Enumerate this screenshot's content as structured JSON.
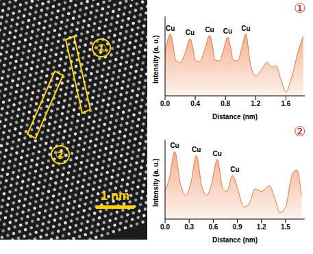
{
  "image": {
    "scale_bar": "1 nm",
    "regions": [
      "①",
      "②"
    ]
  },
  "chart_data": [
    {
      "type": "area",
      "title": "①",
      "x_label": "Distance (nm)",
      "y_label": "Intensity (a. u.)",
      "color": "#e8743b",
      "tick_labels": "x",
      "xlim": [
        0,
        1.85
      ],
      "xticks": [
        {
          "value": 0,
          "label": "0.0"
        },
        {
          "value": 0.4,
          "label": "0.4"
        },
        {
          "value": 0.8,
          "label": "0.8"
        },
        {
          "value": 1.2,
          "label": "1.2"
        },
        {
          "value": 1.6,
          "label": "1.6"
        }
      ],
      "ylim": [
        0,
        1
      ],
      "x": [
        0,
        0.04,
        0.07,
        0.1,
        0.14,
        0.2,
        0.27,
        0.33,
        0.37,
        0.4,
        0.46,
        0.53,
        0.59,
        0.63,
        0.66,
        0.72,
        0.78,
        0.83,
        0.87,
        0.9,
        0.96,
        1.02,
        1.07,
        1.1,
        1.13,
        1.2,
        1.27,
        1.35,
        1.42,
        1.47,
        1.53,
        1.6,
        1.68,
        1.76,
        1.83
      ],
      "values": [
        0.55,
        0.72,
        0.78,
        0.68,
        0.45,
        0.42,
        0.55,
        0.72,
        0.6,
        0.45,
        0.43,
        0.6,
        0.76,
        0.62,
        0.45,
        0.44,
        0.6,
        0.74,
        0.6,
        0.45,
        0.44,
        0.62,
        0.78,
        0.62,
        0.4,
        0.25,
        0.32,
        0.42,
        0.36,
        0.38,
        0.22,
        0.05,
        0.25,
        0.55,
        0.75
      ],
      "annotations": [
        {
          "text": "Cu",
          "x": 0.07,
          "y": 0.78
        },
        {
          "text": "Cu",
          "x": 0.33,
          "y": 0.72
        },
        {
          "text": "Cu",
          "x": 0.59,
          "y": 0.76
        },
        {
          "text": "Cu",
          "x": 0.83,
          "y": 0.74
        },
        {
          "text": "Cu",
          "x": 1.07,
          "y": 0.78
        }
      ]
    },
    {
      "type": "area",
      "title": "②",
      "x_label": "Distance (nm)",
      "y_label": "Intensity (a. u.)",
      "color": "#e8743b",
      "tick_labels": "x",
      "xlim": [
        0,
        1.74
      ],
      "xticks": [
        {
          "value": 0,
          "label": "0.0"
        },
        {
          "value": 0.3,
          "label": "0.3"
        },
        {
          "value": 0.6,
          "label": "0.6"
        },
        {
          "value": 0.9,
          "label": "0.9"
        },
        {
          "value": 1.2,
          "label": "1.2"
        },
        {
          "value": 1.5,
          "label": "1.5"
        }
      ],
      "ylim": [
        0,
        1
      ],
      "x": [
        0,
        0.05,
        0.12,
        0.19,
        0.26,
        0.32,
        0.39,
        0.46,
        0.52,
        0.58,
        0.65,
        0.72,
        0.77,
        0.84,
        0.9,
        0.98,
        1.05,
        1.12,
        1.2,
        1.3,
        1.37,
        1.43,
        1.5,
        1.58,
        1.64,
        1.7
      ],
      "values": [
        0.35,
        0.5,
        0.85,
        0.45,
        0.3,
        0.45,
        0.8,
        0.4,
        0.3,
        0.45,
        0.75,
        0.38,
        0.35,
        0.55,
        0.4,
        0.15,
        0.2,
        0.38,
        0.35,
        0.42,
        0.25,
        0.08,
        0.15,
        0.55,
        0.62,
        0.3
      ],
      "annotations": [
        {
          "text": "Cu",
          "x": 0.12,
          "y": 0.85
        },
        {
          "text": "Cu",
          "x": 0.39,
          "y": 0.8
        },
        {
          "text": "Cu",
          "x": 0.65,
          "y": 0.75
        },
        {
          "text": "Cu",
          "x": 0.87,
          "y": 0.55
        }
      ]
    }
  ]
}
